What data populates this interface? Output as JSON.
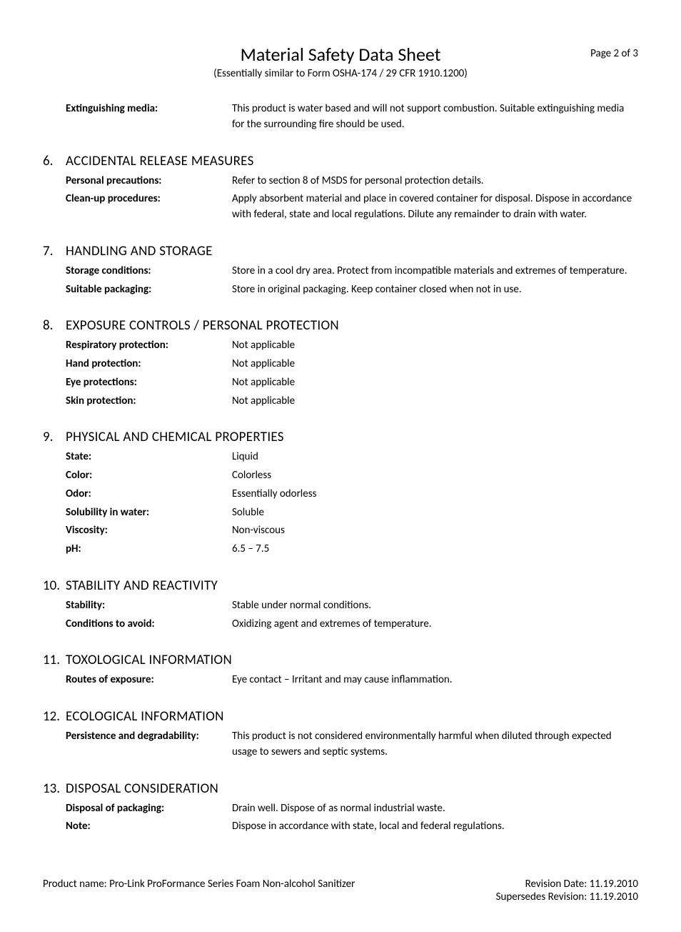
{
  "header": {
    "title": "Material Safety Data Sheet",
    "subtitle": "(Essentially similar to Form OSHA-174 / 29 CFR 1910.1200)",
    "page_number": "Page 2 of 3"
  },
  "pre_section": {
    "rows": [
      {
        "label": "Extinguishing media:",
        "value": "This product is water based and will not support combustion.  Suitable extinguishing media for the surrounding fire should be used."
      }
    ]
  },
  "sections": [
    {
      "number": "6.",
      "title": "ACCIDENTAL RELEASE MEASURES",
      "rows": [
        {
          "label": "Personal precautions:",
          "value": "Refer to section 8 of MSDS for personal protection details."
        },
        {
          "label": "Clean-up procedures:",
          "value": "Apply absorbent material and place in covered container for disposal.  Dispose in accordance with federal, state and local regulations.  Dilute any remainder to drain with water."
        }
      ]
    },
    {
      "number": "7.",
      "title": "HANDLING AND STORAGE",
      "rows": [
        {
          "label": "Storage conditions:",
          "value": "Store in a cool dry area.  Protect from incompatible materials and extremes of temperature."
        },
        {
          "label": "Suitable packaging:",
          "value": "Store in original packaging.  Keep container closed when not in use."
        }
      ]
    },
    {
      "number": "8.",
      "title": "EXPOSURE CONTROLS / PERSONAL PROTECTION",
      "rows": [
        {
          "label": "Respiratory protection:",
          "value": "Not applicable"
        },
        {
          "label": "Hand protection:",
          "value": "Not applicable"
        },
        {
          "label": "Eye protections:",
          "value": "Not applicable"
        },
        {
          "label": "Skin protection:",
          "value": "Not applicable"
        }
      ]
    },
    {
      "number": "9.",
      "title": "PHYSICAL AND CHEMICAL PROPERTIES",
      "rows": [
        {
          "label": "State:",
          "value": "Liquid"
        },
        {
          "label": "Color:",
          "value": "Colorless"
        },
        {
          "label": "Odor:",
          "value": "Essentially odorless"
        },
        {
          "label": "Solubility in water:",
          "value": "Soluble"
        },
        {
          "label": "Viscosity:",
          "value": "Non-viscous"
        },
        {
          "label": "pH:",
          "value": "6.5 – 7.5"
        }
      ]
    },
    {
      "number": "10.",
      "title": "STABILITY AND REACTIVITY",
      "rows": [
        {
          "label": "Stability:",
          "value": "Stable under normal conditions."
        },
        {
          "label": "Conditions to avoid:",
          "value": "Oxidizing agent and extremes of temperature."
        }
      ]
    },
    {
      "number": "11.",
      "title": "TOXOLOGICAL INFORMATION",
      "rows": [
        {
          "label": "Routes of exposure:",
          "value": "Eye contact – Irritant and may cause inflammation."
        }
      ]
    },
    {
      "number": "12.",
      "title": "ECOLOGICAL INFORMATION",
      "rows": [
        {
          "label": "Persistence and degradability:",
          "value": "This product is not considered environmentally harmful when diluted through expected usage to sewers and septic systems."
        }
      ]
    },
    {
      "number": "13.",
      "title": "DISPOSAL CONSIDERATION",
      "rows": [
        {
          "label": "Disposal of packaging:",
          "value": "Drain well.  Dispose of as normal industrial waste."
        },
        {
          "label": "Note:",
          "value": "Dispose in accordance with state, local and federal regulations."
        }
      ]
    }
  ],
  "footer": {
    "product_name": "Product name: Pro-Link ProFormance Series Foam Non-alcohol Sanitizer",
    "revision_date": "Revision Date: 11.19.2010",
    "supersedes": "Supersedes Revision: 11.19.2010"
  }
}
